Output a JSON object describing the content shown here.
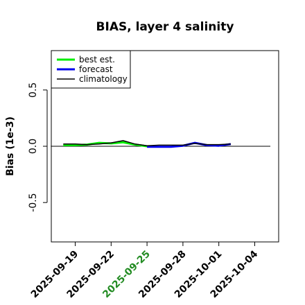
{
  "chart_data": {
    "type": "line",
    "title": "BIAS, layer 4 salinity",
    "xlabel": "",
    "ylabel": "Bias (1e-3)",
    "ylim": [
      -0.85,
      0.85
    ],
    "yticks": [
      -0.5,
      0.0,
      0.5
    ],
    "ytick_labels": [
      "-0.5",
      "0.0",
      "0.5"
    ],
    "xlim": [
      "2025-09-17",
      "2025-10-06"
    ],
    "xticks": [
      "2025-09-19",
      "2025-09-22",
      "2025-09-25",
      "2025-09-28",
      "2025-10-01",
      "2025-10-04"
    ],
    "highlighted_xtick": "2025-09-25",
    "highlight_color": "#228b22",
    "legend_position": "top-left",
    "grid": false,
    "series": [
      {
        "name": "best est.",
        "color": "#00ee00",
        "x": [
          "2025-09-18",
          "2025-09-19",
          "2025-09-20",
          "2025-09-21",
          "2025-09-22",
          "2025-09-23",
          "2025-09-24",
          "2025-09-25"
        ],
        "y": [
          0.01,
          0.01,
          0.015,
          0.03,
          0.025,
          0.035,
          0.015,
          0.0
        ]
      },
      {
        "name": "forecast",
        "color": "#0000ee",
        "x": [
          "2025-09-25",
          "2025-09-26",
          "2025-09-27",
          "2025-09-28",
          "2025-09-29",
          "2025-09-30",
          "2025-10-01",
          "2025-10-02"
        ],
        "y": [
          -0.005,
          -0.005,
          -0.005,
          0.005,
          0.03,
          0.01,
          0.005,
          0.02
        ]
      },
      {
        "name": "climatology",
        "color": "#000000",
        "x": [
          "2025-09-18",
          "2025-09-19",
          "2025-09-20",
          "2025-09-21",
          "2025-09-22",
          "2025-09-23",
          "2025-09-24",
          "2025-09-25",
          "2025-09-26",
          "2025-09-27",
          "2025-09-28",
          "2025-09-29",
          "2025-09-30",
          "2025-10-01",
          "2025-10-02"
        ],
        "y": [
          0.02,
          0.02,
          0.015,
          0.02,
          0.03,
          0.05,
          0.02,
          0.005,
          0.01,
          0.01,
          0.01,
          0.025,
          0.015,
          0.015,
          0.02
        ]
      }
    ],
    "zero_line": 0.0
  }
}
